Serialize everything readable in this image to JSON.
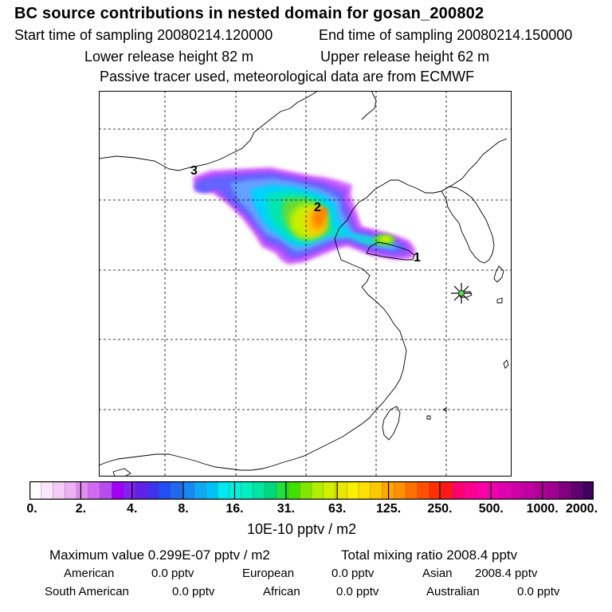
{
  "header": {
    "title": "BC  source contributions in nested domain for gosan_200802",
    "start_time": "Start time of sampling 20080214.120000",
    "end_time": "End time of sampling 20080214.150000",
    "lower_release": "Lower release height   82 m",
    "upper_release": "Upper release height   62 m",
    "passive_note": "Passive tracer used, meteorological data are from ECMWF"
  },
  "map": {
    "trajectory_labels": [
      "1",
      "2",
      "3"
    ],
    "receptor_marker": "star-icon",
    "plume_colors": [
      "#ff8000",
      "#ffc800",
      "#c8f000",
      "#64dc32",
      "#00e6b4",
      "#00d2ff",
      "#64a0ff",
      "#6464ff",
      "#a050ff",
      "#d264ff"
    ]
  },
  "colorbar": {
    "tick_labels": [
      "0.",
      "2.",
      "4.",
      "8.",
      "16.",
      "31.",
      "63.",
      "125.",
      "250.",
      "500.",
      "1000.",
      "2000."
    ],
    "unit": "10E-10 pptv / m2",
    "colors": [
      "#ffffff",
      "#fbe6fb",
      "#f4ccf7",
      "#ecb2f4",
      "#e08cf2",
      "#d068f0",
      "#b84cf0",
      "#a000f5",
      "#8420f0",
      "#6020e8",
      "#4030f0",
      "#2050f5",
      "#2068f0",
      "#1888f5",
      "#10a8f5",
      "#00c0f8",
      "#00e8f0",
      "#00f0dc",
      "#00f0c0",
      "#00e6a0",
      "#00d880",
      "#20e040",
      "#40e000",
      "#80e800",
      "#b0f000",
      "#d0f000",
      "#e8e800",
      "#f8f000",
      "#ffe000",
      "#ffc800",
      "#ffa800",
      "#ff9000",
      "#ff7000",
      "#ff5000",
      "#ff3000",
      "#ff1818",
      "#ff0070",
      "#ff0090",
      "#ff00a8",
      "#f000b0",
      "#e000b0",
      "#d000a8",
      "#c000a0",
      "#b00098",
      "#a00090",
      "#800080",
      "#600070",
      "#400060"
    ]
  },
  "stats": {
    "maximum_value": "Maximum value  0.299E-07 pptv / m2",
    "total_mixing": "Total mixing ratio     2008.4 pptv",
    "american_label": "American",
    "american_value": "0.0 pptv",
    "european_label": "European",
    "european_value": "0.0 pptv",
    "asian_label": "Asian",
    "asian_value": "2008.4 pptv",
    "south_american_label": "South American",
    "south_american_value": "0.0 pptv",
    "african_label": "African",
    "african_value": "0.0 pptv",
    "australian_label": "Australian",
    "australian_value": "0.0 pptv"
  }
}
